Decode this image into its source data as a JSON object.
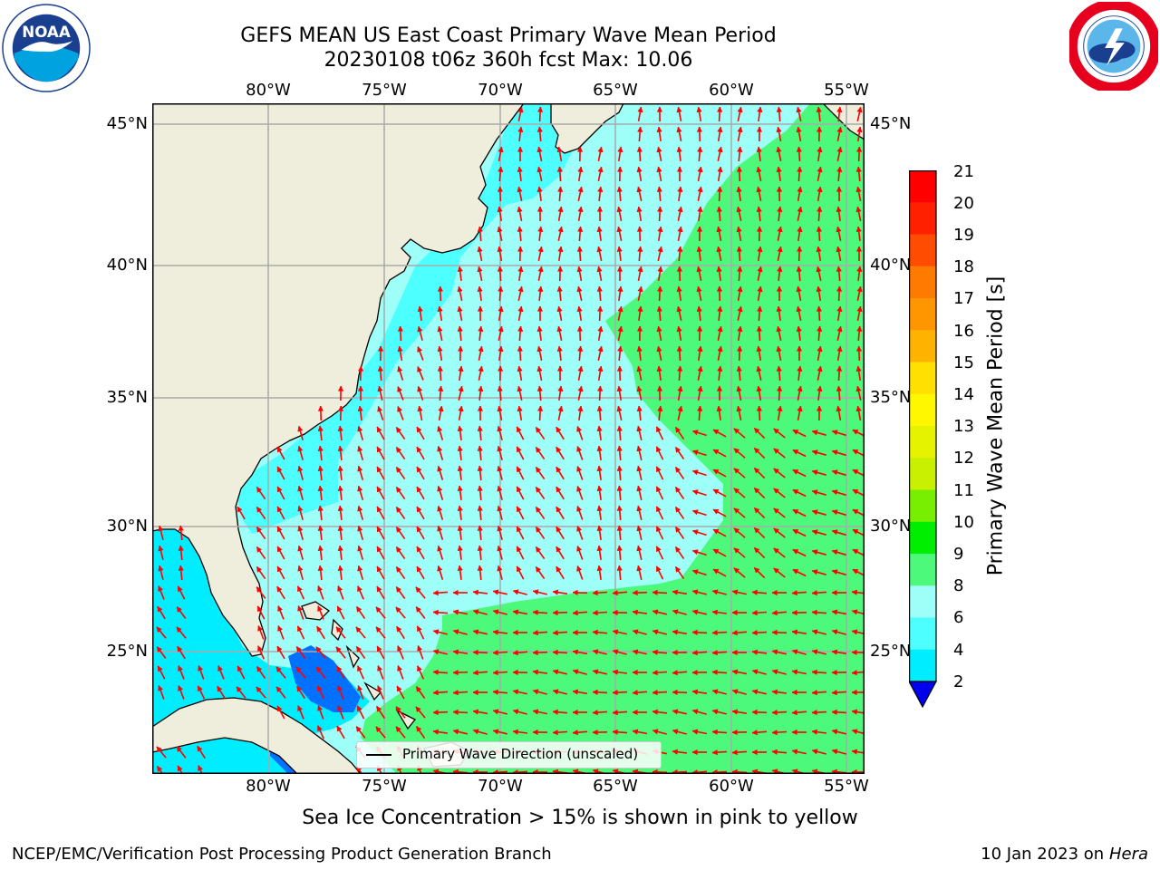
{
  "title": {
    "line1": "GEFS MEAN US East Coast Primary Wave Mean Period",
    "line2": "20230108 t06z 360h fcst   Max: 10.06"
  },
  "map": {
    "lon_labels": [
      "80°W",
      "75°W",
      "70°W",
      "65°W",
      "60°W",
      "55°W"
    ],
    "lat_labels": [
      "45°N",
      "40°N",
      "35°N",
      "30°N",
      "25°N"
    ],
    "lon_range": [
      -85,
      -54
    ],
    "lat_range": [
      20.5,
      46
    ],
    "legend_label": "Primary Wave Direction (unscaled)",
    "colors": {
      "land": "#efeedd",
      "grid": "#aaaaaa",
      "arrow": "#ff0000",
      "coast": "#000000"
    }
  },
  "colorbar": {
    "label": "Primary Wave Mean Period [s]",
    "ticks": [
      "21",
      "20",
      "19",
      "18",
      "17",
      "16",
      "15",
      "14",
      "13",
      "12",
      "11",
      "10",
      "9",
      "8",
      "6",
      "4",
      "2"
    ],
    "colors": [
      "#ff0000",
      "#ff2000",
      "#ff4c00",
      "#ff7a00",
      "#ff9600",
      "#ffb300",
      "#ffe000",
      "#fff700",
      "#e6f300",
      "#c8f000",
      "#78ee00",
      "#00ee00",
      "#4cf97a",
      "#9dfff8",
      "#4dffff",
      "#00ecff",
      "#0072ff"
    ],
    "extend_color": "#0000ee"
  },
  "notes": {
    "ice": "Sea Ice Concentration > 15% is shown in pink to yellow"
  },
  "footer": {
    "left": "NCEP/EMC/Verification Post Processing Product Generation Branch",
    "right_date": "10 Jan 2023 on ",
    "right_machine": "Hera"
  }
}
